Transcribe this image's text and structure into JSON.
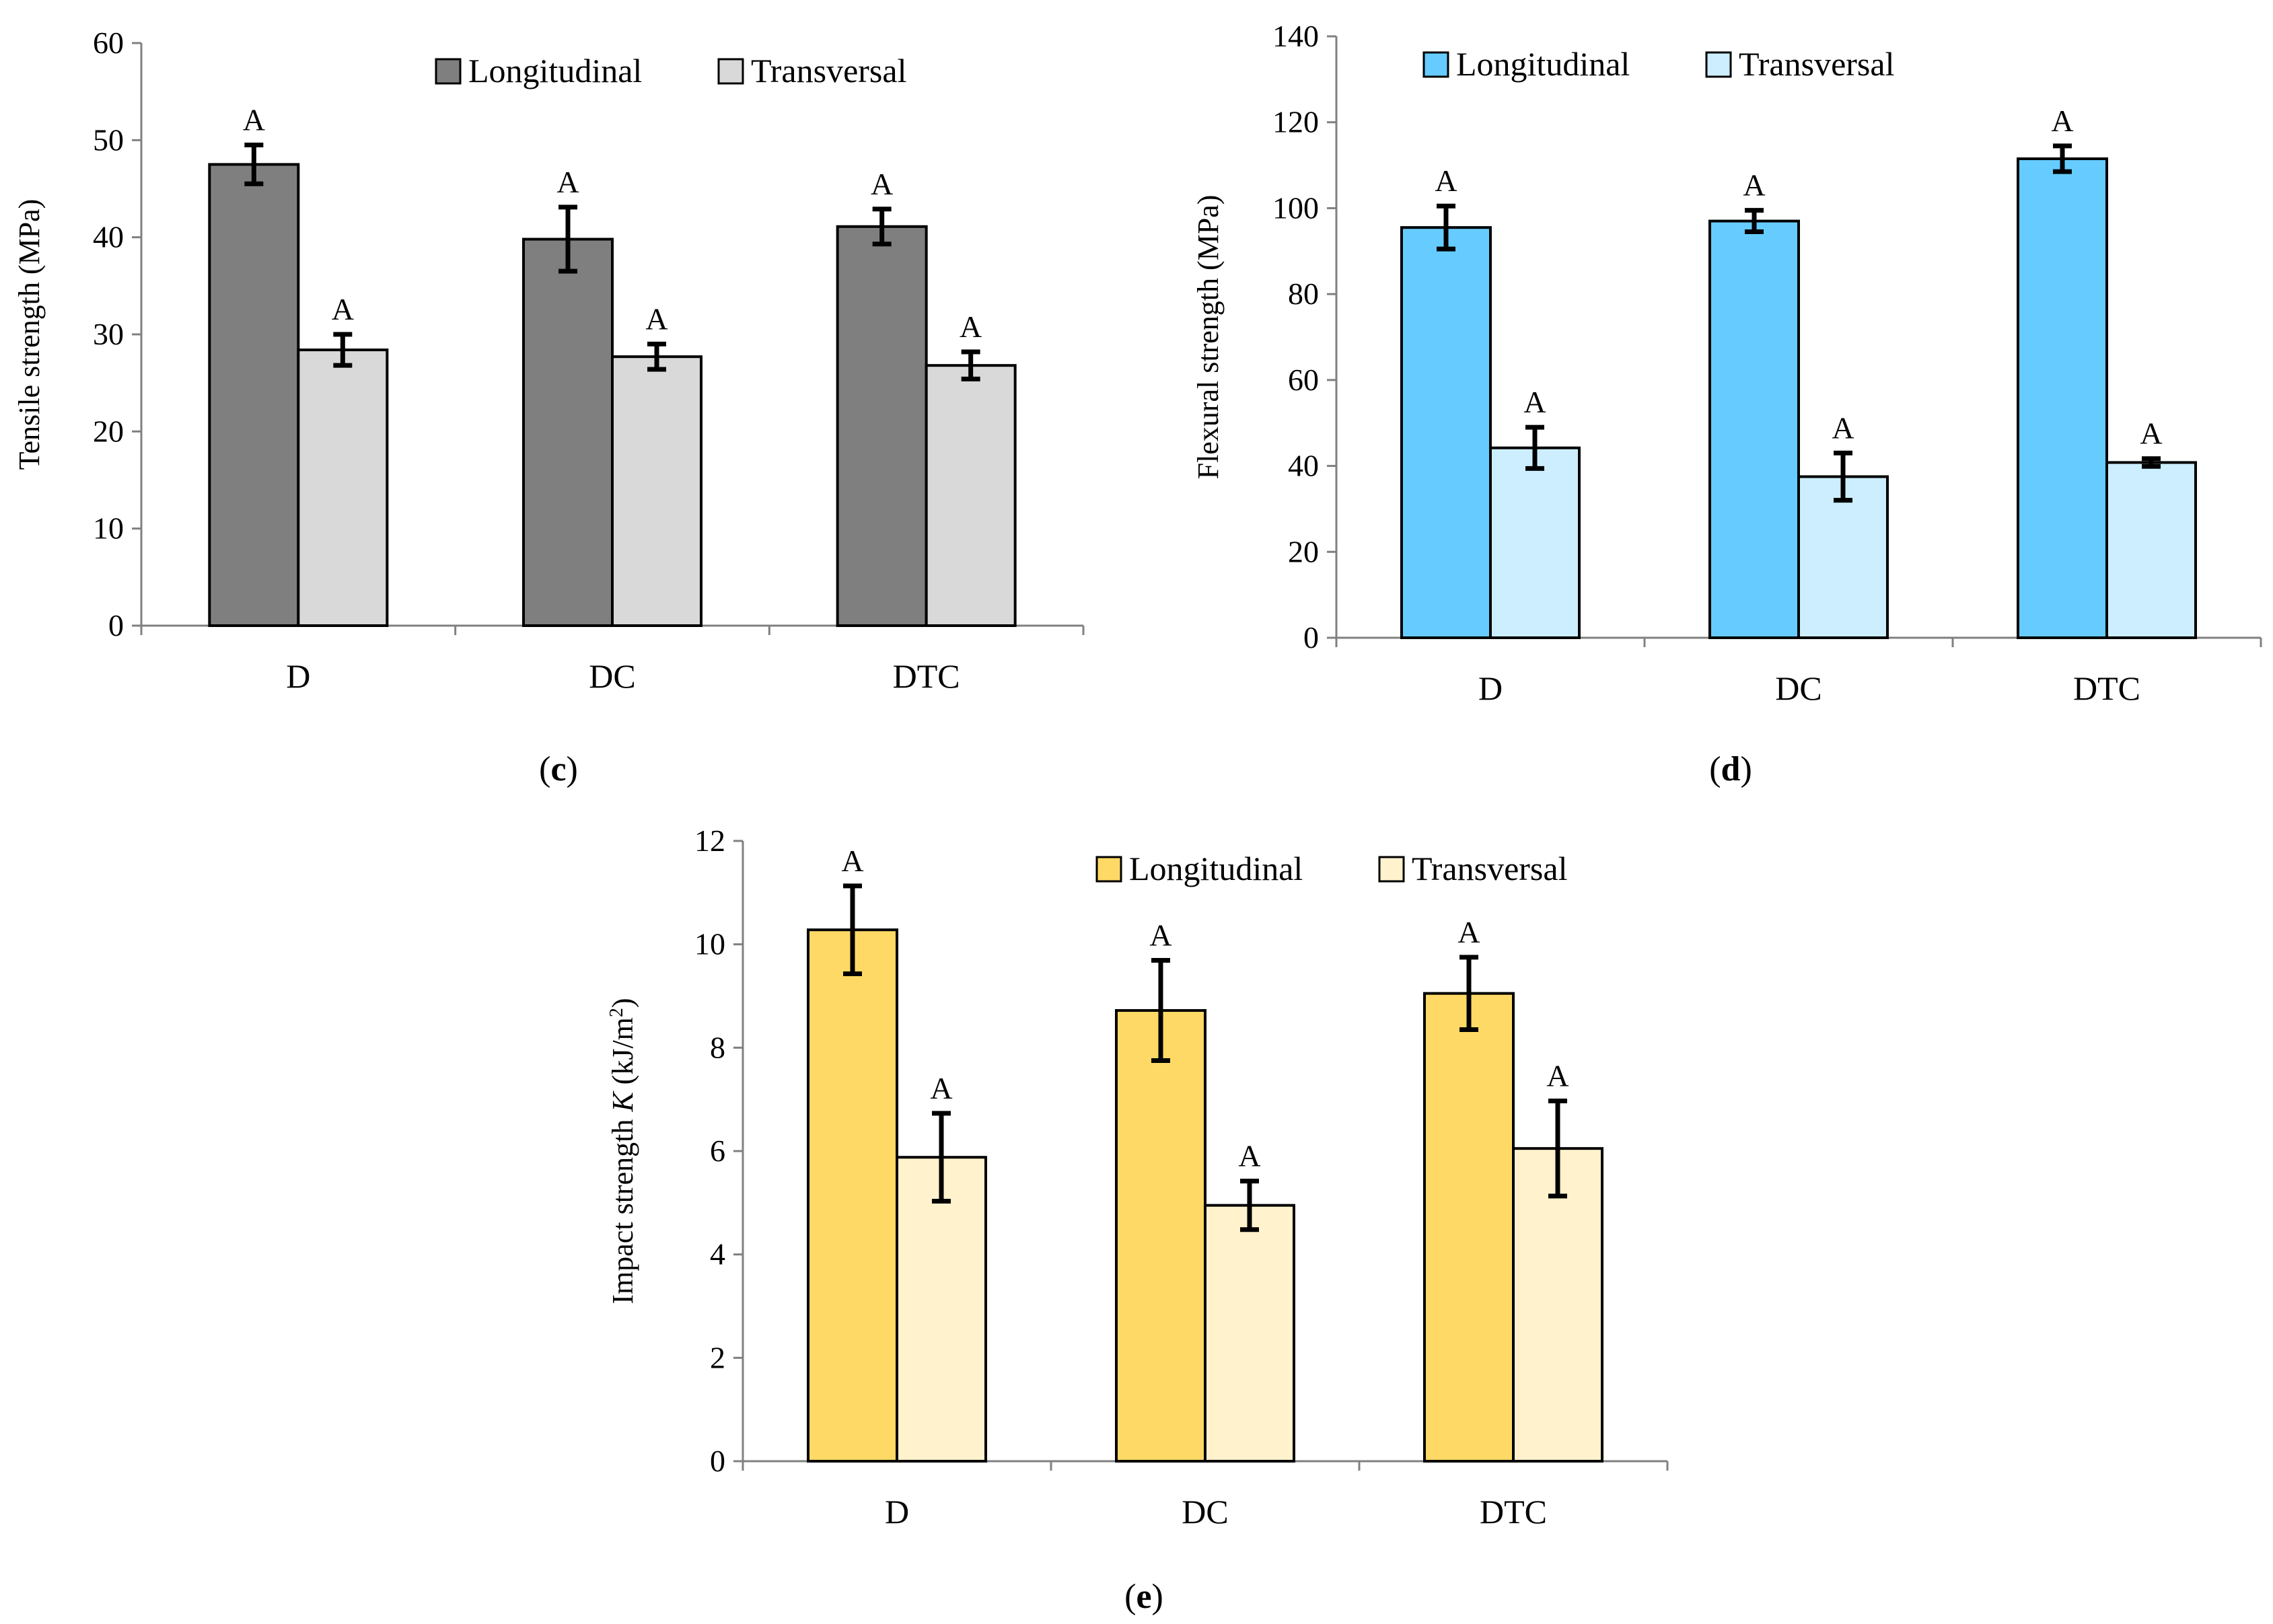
{
  "chart_data": [
    {
      "id": "c",
      "type": "bar",
      "panel_label_open": "(",
      "panel_label_letter": "c",
      "panel_label_close": ")",
      "categories": [
        "D",
        "DC",
        "DTC"
      ],
      "ylabel": "Tensile strength  (MPa)",
      "ylim": [
        0,
        60
      ],
      "yticks": [
        0,
        10,
        20,
        30,
        40,
        50,
        60
      ],
      "legend_position": "top-right",
      "series": [
        {
          "name": "Longitudinal",
          "color": "#7f7f7f",
          "values": [
            47.5,
            39.8,
            41.1
          ],
          "errors": [
            2.0,
            3.3,
            1.8
          ],
          "labels": [
            "A",
            "A",
            "A"
          ]
        },
        {
          "name": "Transversal",
          "color": "#d9d9d9",
          "values": [
            28.4,
            27.7,
            26.8
          ],
          "errors": [
            1.6,
            1.3,
            1.4
          ],
          "labels": [
            "A",
            "A",
            "A"
          ]
        }
      ]
    },
    {
      "id": "d",
      "type": "bar",
      "panel_label_open": "(",
      "panel_label_letter": "d",
      "panel_label_close": ")",
      "categories": [
        "D",
        "DC",
        "DTC"
      ],
      "ylabel": "Flexural strength (MPa)",
      "ylim": [
        0,
        140
      ],
      "yticks": [
        0,
        20,
        40,
        60,
        80,
        100,
        120,
        140
      ],
      "legend_position": "top",
      "series": [
        {
          "name": "Longitudinal",
          "color": "#66ccff",
          "values": [
            95.5,
            97.0,
            111.5
          ],
          "errors": [
            5.0,
            2.5,
            3.0
          ],
          "labels": [
            "A",
            "A",
            "A"
          ]
        },
        {
          "name": "Transversal",
          "color": "#cceeff",
          "values": [
            44.2,
            37.5,
            40.8
          ],
          "errors": [
            4.8,
            5.5,
            0.9
          ],
          "labels": [
            "A",
            "A",
            "A"
          ]
        }
      ]
    },
    {
      "id": "e",
      "type": "bar",
      "panel_label_open": "(",
      "panel_label_letter": "e",
      "panel_label_close": ")",
      "categories": [
        "D",
        "DC",
        "DTC"
      ],
      "ylabel_prefix": "Impact strength ",
      "ylabel_italic": "K",
      "ylabel_unit": " (kJ/m",
      "ylabel_sup": "2",
      "ylabel_close": ")",
      "ylim": [
        0,
        12
      ],
      "yticks": [
        0,
        2,
        4,
        6,
        8,
        10,
        12
      ],
      "legend_position": "top-right",
      "series": [
        {
          "name": "Longitudinal",
          "color": "#ffd966",
          "values": [
            10.28,
            8.72,
            9.05
          ],
          "errors": [
            0.85,
            0.97,
            0.7
          ],
          "labels": [
            "A",
            "A",
            "A"
          ]
        },
        {
          "name": "Transversal",
          "color": "#fff2cc",
          "values": [
            5.88,
            4.95,
            6.05
          ],
          "errors": [
            0.85,
            0.47,
            0.92
          ],
          "labels": [
            "A",
            "A",
            "A"
          ]
        }
      ]
    }
  ]
}
